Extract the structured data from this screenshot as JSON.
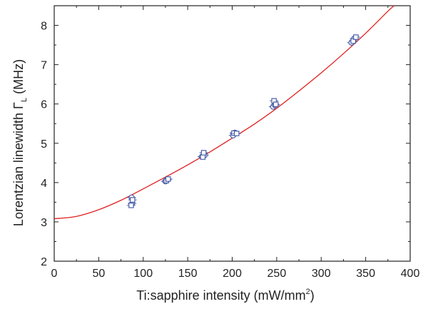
{
  "chart_data": {
    "type": "scatter",
    "xlabel": {
      "main": "Ti:sapphire intensity (mW/mm",
      "sup": "2",
      "end": ")"
    },
    "ylabel": {
      "main": "Lorentzian linewidth Γ",
      "sub": "L",
      "end": " (MHz)"
    },
    "xlim": [
      0,
      400
    ],
    "ylim": [
      2,
      8.5
    ],
    "xticks": [
      "0",
      "50",
      "100",
      "150",
      "200",
      "250",
      "300",
      "350",
      "400"
    ],
    "yticks": [
      "2",
      "3",
      "4",
      "5",
      "6",
      "7",
      "8"
    ],
    "grid": false,
    "colors": {
      "points": "#4a5fa8",
      "fit": "#e02020",
      "axis": "#222222"
    },
    "series": [
      {
        "marker": "circle",
        "x": [
          87,
          87.5,
          125,
          127,
          166,
          169,
          201,
          203,
          246,
          248,
          334,
          337
        ],
        "y": [
          3.62,
          3.47,
          4.03,
          4.07,
          4.66,
          4.7,
          5.2,
          5.27,
          5.93,
          5.97,
          7.56,
          7.66
        ]
      },
      {
        "marker": "square",
        "x": [
          86.5,
          88,
          126,
          128,
          167,
          168,
          202,
          205,
          247,
          249,
          336,
          339
        ],
        "y": [
          3.42,
          3.56,
          4.05,
          4.09,
          4.65,
          4.76,
          5.26,
          5.25,
          6.08,
          5.99,
          7.6,
          7.7
        ]
      }
    ],
    "fit": {
      "label": "",
      "x": [
        0,
        25,
        50,
        75,
        100,
        125,
        150,
        175,
        200,
        225,
        250,
        275,
        300,
        325,
        350,
        375,
        382
      ],
      "y": [
        3.08,
        3.14,
        3.31,
        3.55,
        3.84,
        4.14,
        4.45,
        4.78,
        5.13,
        5.49,
        5.89,
        6.33,
        6.79,
        7.28,
        7.8,
        8.36,
        8.5
      ]
    }
  }
}
